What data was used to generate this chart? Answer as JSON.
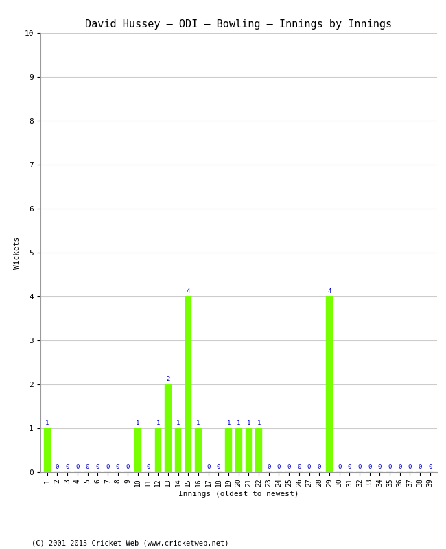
{
  "title": "David Hussey – ODI – Bowling – Innings by Innings",
  "xlabel": "Innings (oldest to newest)",
  "ylabel": "Wickets",
  "background_color": "#ffffff",
  "grid_color": "#cccccc",
  "bar_color": "#77ff00",
  "label_color": "#0000cc",
  "innings": [
    1,
    2,
    3,
    4,
    5,
    6,
    7,
    8,
    9,
    10,
    11,
    12,
    13,
    14,
    15,
    16,
    17,
    18,
    19,
    20,
    21,
    22,
    23,
    24,
    25,
    26,
    27,
    28,
    29,
    30,
    31,
    32,
    33,
    34,
    35,
    36,
    37,
    38,
    39
  ],
  "wickets": [
    1,
    0,
    0,
    0,
    0,
    0,
    0,
    0,
    0,
    1,
    0,
    1,
    2,
    1,
    4,
    1,
    0,
    0,
    1,
    1,
    1,
    1,
    0,
    0,
    0,
    0,
    0,
    0,
    4,
    0,
    0,
    0,
    0,
    0,
    0,
    0,
    0,
    0,
    0
  ],
  "ylim": [
    0,
    10
  ],
  "yticks": [
    0,
    1,
    2,
    3,
    4,
    5,
    6,
    7,
    8,
    9,
    10
  ],
  "footer": "(C) 2001-2015 Cricket Web (www.cricketweb.net)",
  "title_fontsize": 11,
  "axis_fontsize": 7,
  "label_fontsize": 6.5,
  "footer_fontsize": 7.5
}
